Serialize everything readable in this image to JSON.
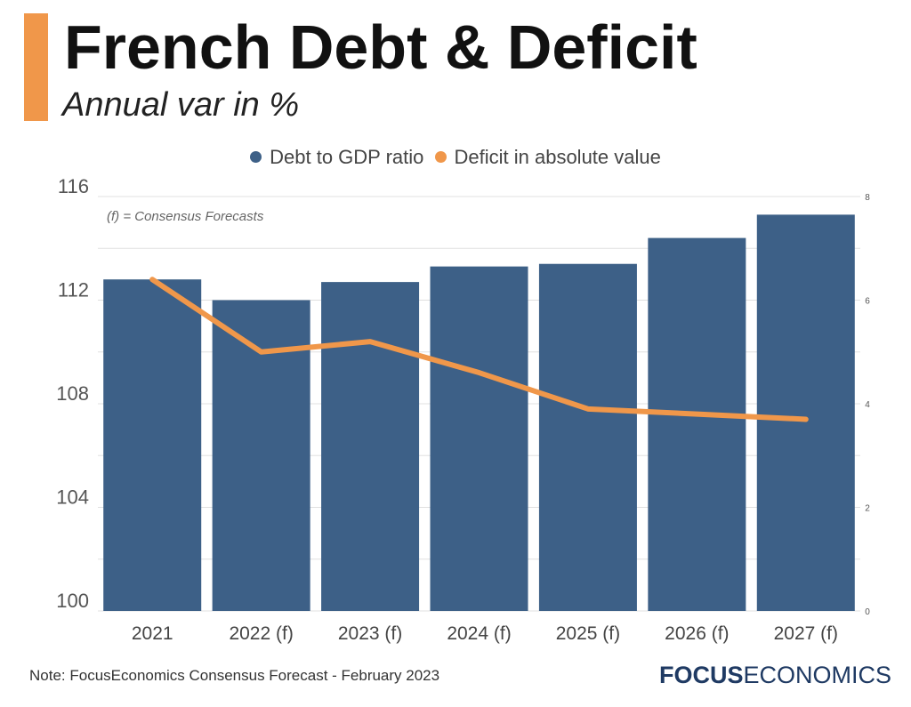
{
  "header": {
    "title": "French Debt & Deficit",
    "subtitle": "Annual var in %"
  },
  "legend": [
    {
      "label": "Debt to GDP ratio",
      "color": "#3d6087"
    },
    {
      "label": "Deficit in absolute value",
      "color": "#f0974a"
    }
  ],
  "annotation": "(f) = Consensus Forecasts",
  "footer": {
    "note": "Note: FocusEconomics Consensus Forecast - February 2023",
    "logo_bold": "FOCUS",
    "logo_light": "ECONOMICS"
  },
  "colors": {
    "accent": "#f0974a",
    "bar": "#3d6087",
    "line": "#f0974a",
    "grid": "#e0e0e0"
  },
  "chart_data": {
    "type": "bar",
    "categories": [
      "2021",
      "2022 (f)",
      "2023 (f)",
      "2024 (f)",
      "2025 (f)",
      "2026 (f)",
      "2027 (f)"
    ],
    "series": [
      {
        "name": "Debt to GDP ratio",
        "type": "bar",
        "axis": "left",
        "values": [
          112.8,
          112.0,
          112.7,
          113.3,
          113.4,
          114.4,
          115.3
        ]
      },
      {
        "name": "Deficit in absolute value",
        "type": "line",
        "axis": "right",
        "values": [
          6.4,
          5.0,
          5.2,
          4.6,
          3.9,
          3.8,
          3.7
        ]
      }
    ],
    "y_left": {
      "ylim": [
        100,
        116
      ],
      "ticks": [
        100,
        104,
        108,
        112,
        116
      ]
    },
    "y_right": {
      "ylim": [
        0,
        8
      ],
      "ticks": [
        0,
        2,
        4,
        6,
        8
      ]
    },
    "grid": true,
    "legend_position": "top"
  }
}
